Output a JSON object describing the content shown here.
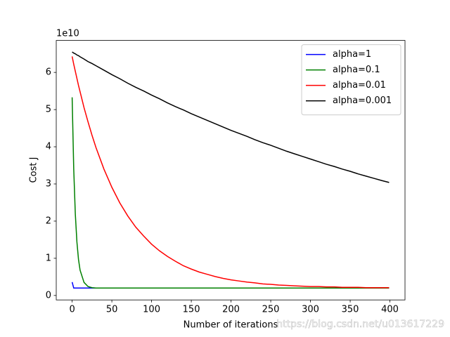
{
  "chart_data": {
    "type": "line",
    "xlabel": "Number of iterations",
    "ylabel": "Cost J",
    "y_offset_label": "1e10",
    "watermark": "https://blog.csdn.net/u013617229",
    "xlim": [
      -20,
      419
    ],
    "ylim": [
      -0.12,
      6.86
    ],
    "xticks": [
      0,
      50,
      100,
      150,
      200,
      250,
      300,
      350,
      400
    ],
    "yticks": [
      0,
      1,
      2,
      3,
      4,
      5,
      6
    ],
    "legend": "upper right",
    "x": [
      0,
      2,
      4,
      6,
      8,
      10,
      15,
      20,
      25,
      30,
      40,
      50,
      60,
      70,
      80,
      90,
      100,
      110,
      120,
      130,
      140,
      150,
      160,
      170,
      180,
      190,
      200,
      210,
      220,
      230,
      240,
      250,
      260,
      270,
      280,
      290,
      300,
      310,
      320,
      330,
      340,
      350,
      360,
      370,
      380,
      390,
      399
    ],
    "series": [
      {
        "name": "alpha=1",
        "color": "#0000ff",
        "values": [
          0.36,
          0.2,
          0.2,
          0.2,
          0.2,
          0.2,
          0.2,
          0.2,
          0.2,
          0.2,
          0.2,
          0.2,
          0.2,
          0.2,
          0.2,
          0.2,
          0.2,
          0.2,
          0.2,
          0.2,
          0.2,
          0.2,
          0.2,
          0.2,
          0.2,
          0.2,
          0.2,
          0.2,
          0.2,
          0.2,
          0.2,
          0.2,
          0.2,
          0.2,
          0.2,
          0.2,
          0.2,
          0.2,
          0.2,
          0.2,
          0.2,
          0.2,
          0.2,
          0.2,
          0.2,
          0.2,
          0.2
        ]
      },
      {
        "name": "alpha=0.1",
        "color": "#008000",
        "values": [
          5.33,
          3.4,
          2.19,
          1.44,
          0.97,
          0.68,
          0.35,
          0.24,
          0.21,
          0.2,
          0.2,
          0.2,
          0.2,
          0.2,
          0.2,
          0.2,
          0.2,
          0.2,
          0.2,
          0.2,
          0.2,
          0.2,
          0.2,
          0.2,
          0.2,
          0.2,
          0.2,
          0.2,
          0.2,
          0.2,
          0.2,
          0.2,
          0.2,
          0.2,
          0.2,
          0.2,
          0.2,
          0.2,
          0.2,
          0.2,
          0.2,
          0.2,
          0.2,
          0.2,
          0.2,
          0.2,
          0.2
        ]
      },
      {
        "name": "alpha=0.01",
        "color": "#ff0000",
        "values": [
          6.43,
          6.22,
          6.03,
          5.84,
          5.65,
          5.48,
          5.05,
          4.67,
          4.31,
          3.98,
          3.4,
          2.91,
          2.49,
          2.14,
          1.84,
          1.6,
          1.38,
          1.2,
          1.05,
          0.92,
          0.8,
          0.71,
          0.63,
          0.57,
          0.51,
          0.46,
          0.42,
          0.39,
          0.36,
          0.34,
          0.31,
          0.3,
          0.28,
          0.27,
          0.26,
          0.25,
          0.24,
          0.24,
          0.23,
          0.23,
          0.22,
          0.22,
          0.22,
          0.21,
          0.21,
          0.21,
          0.21
        ]
      },
      {
        "name": "alpha=0.001",
        "color": "#000000",
        "values": [
          6.55,
          6.52,
          6.5,
          6.47,
          6.45,
          6.42,
          6.36,
          6.29,
          6.24,
          6.18,
          6.06,
          5.94,
          5.83,
          5.71,
          5.6,
          5.5,
          5.39,
          5.29,
          5.18,
          5.08,
          4.99,
          4.89,
          4.8,
          4.71,
          4.62,
          4.53,
          4.44,
          4.36,
          4.28,
          4.19,
          4.11,
          4.04,
          3.96,
          3.88,
          3.81,
          3.74,
          3.67,
          3.6,
          3.53,
          3.47,
          3.4,
          3.34,
          3.27,
          3.21,
          3.15,
          3.09,
          3.04
        ]
      }
    ]
  }
}
